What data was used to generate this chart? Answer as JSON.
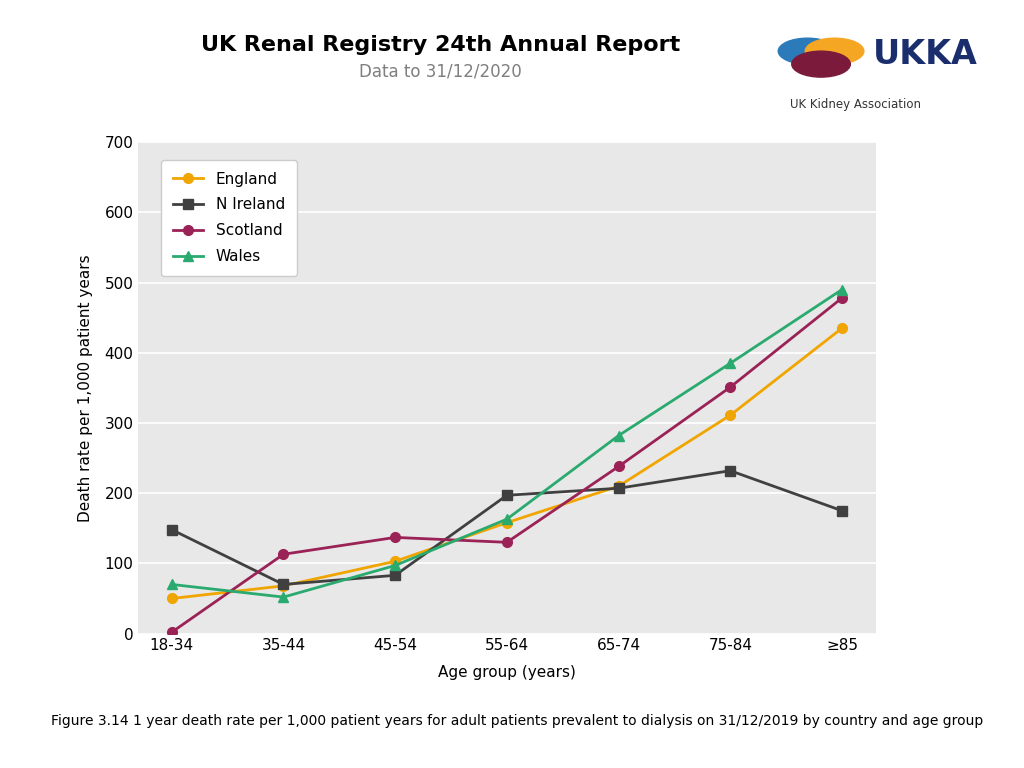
{
  "title": "UK Renal Registry 24th Annual Report",
  "subtitle": "Data to 31/12/2020",
  "xlabel": "Age group (years)",
  "ylabel": "Death rate per 1,000 patient years",
  "caption": "Figure 3.14 1 year death rate per 1,000 patient years for adult patients prevalent to dialysis on 31/12/2019 by country and age group",
  "age_groups": [
    "18-34",
    "35-44",
    "45-54",
    "55-64",
    "65-74",
    "75-84",
    "≥85"
  ],
  "series": {
    "England": {
      "values": [
        50,
        68,
        103,
        158,
        210,
        311,
        435
      ],
      "color": "#f0a500",
      "marker": "o"
    },
    "N Ireland": {
      "values": [
        148,
        70,
        83,
        197,
        207,
        232,
        175
      ],
      "color": "#404040",
      "marker": "s"
    },
    "Scotland": {
      "values": [
        2,
        113,
        137,
        130,
        238,
        351,
        478
      ],
      "color": "#9b2257",
      "marker": "o"
    },
    "Wales": {
      "values": [
        70,
        52,
        97,
        163,
        282,
        385,
        490
      ],
      "color": "#2aaa6e",
      "marker": "^"
    }
  },
  "ylim": [
    0,
    700
  ],
  "yticks": [
    0,
    100,
    200,
    300,
    400,
    500,
    600,
    700
  ],
  "plot_bg_color": "#e8e8e8",
  "title_fontsize": 16,
  "subtitle_fontsize": 12,
  "tick_fontsize": 11,
  "label_fontsize": 11,
  "legend_fontsize": 11,
  "caption_fontsize": 10
}
